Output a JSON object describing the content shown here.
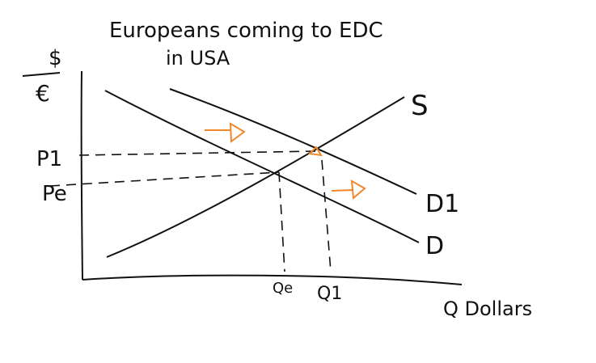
{
  "title": {
    "line1": "Europeans coming to EDC",
    "line2": "in USA"
  },
  "y_axis": {
    "label_top": "$",
    "label_bottom": "€"
  },
  "x_axis": {
    "label": "Q Dollars"
  },
  "curves": {
    "supply": "S",
    "demand": "D",
    "demand_shifted": "D1"
  },
  "price_labels": {
    "p1": "P1",
    "pe": "Pe"
  },
  "quantity_labels": {
    "qe": "Qe",
    "q1": "Q1"
  },
  "colors": {
    "ink": "#111111",
    "shift_arrows": "#f0882a"
  }
}
